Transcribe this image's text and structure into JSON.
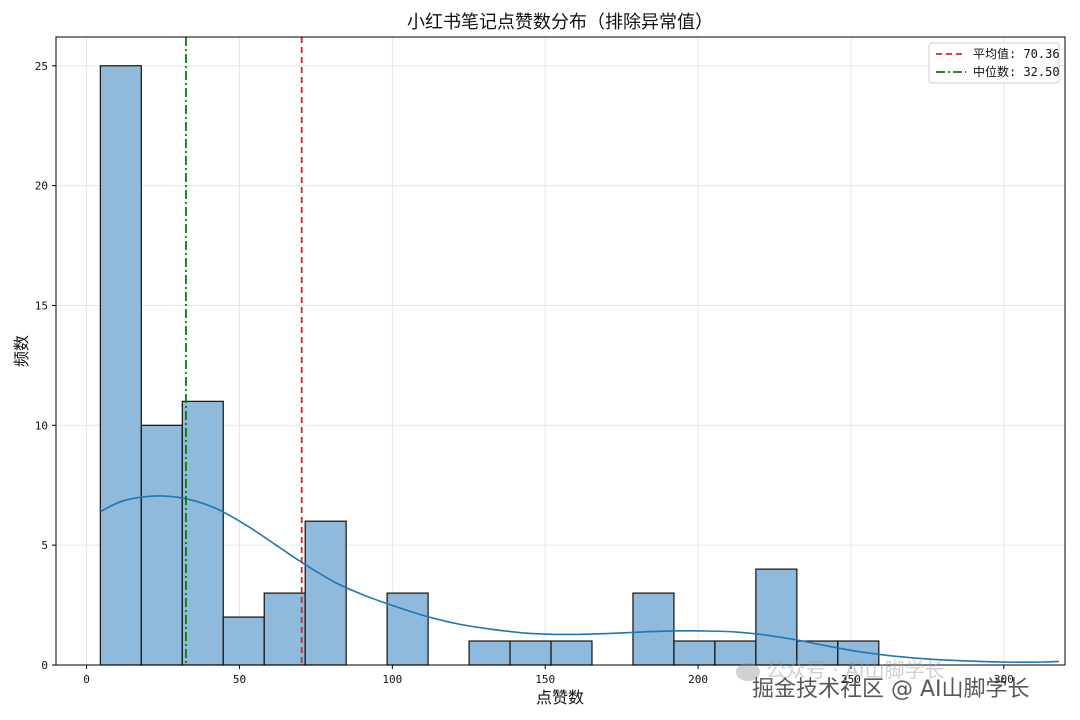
{
  "chart_data": {
    "type": "histogram",
    "title": "小红书笔记点赞数分布（排除异常值）",
    "xlabel": "点赞数",
    "ylabel": "频数",
    "xlim": [
      -10,
      320
    ],
    "ylim": [
      0,
      26.2
    ],
    "xticks": [
      0,
      50,
      100,
      150,
      200,
      250,
      300
    ],
    "yticks": [
      0,
      5,
      10,
      15,
      20,
      25
    ],
    "grid": true,
    "legend_position": "top-right",
    "bin_edges": [
      4.5,
      17.9,
      31.3,
      44.7,
      58.1,
      71.5,
      84.9,
      98.3,
      111.7,
      125.1,
      138.5,
      151.9,
      165.3,
      178.7,
      192.1,
      205.5,
      218.9,
      232.3,
      245.7,
      259.1,
      272.5,
      285.9,
      299.3,
      312.7,
      326.1
    ],
    "counts": [
      25,
      10,
      11,
      2,
      3,
      6,
      0,
      3,
      0,
      1,
      1,
      1,
      0,
      3,
      1,
      1,
      4,
      1,
      1,
      0,
      0,
      0,
      0,
      0
    ],
    "bar_color": "#8fbadb",
    "bar_edge_color": "#111111",
    "kde": {
      "color": "#1f77b4",
      "x": [
        4.5,
        12,
        22,
        32,
        42,
        52,
        62,
        72,
        82,
        92,
        102,
        112,
        122,
        132,
        142,
        152,
        162,
        172,
        182,
        192,
        202,
        212,
        222,
        232,
        242,
        252,
        262,
        272,
        282,
        292,
        302,
        312,
        318
      ],
      "y": [
        6.4,
        6.85,
        7.05,
        6.95,
        6.55,
        5.85,
        5.0,
        4.15,
        3.4,
        2.85,
        2.4,
        2.0,
        1.7,
        1.5,
        1.35,
        1.28,
        1.28,
        1.32,
        1.38,
        1.42,
        1.42,
        1.38,
        1.25,
        1.05,
        0.8,
        0.57,
        0.4,
        0.28,
        0.2,
        0.15,
        0.12,
        0.12,
        0.15
      ]
    },
    "reference_lines": [
      {
        "label": "平均值: 70.36",
        "value": 70.36,
        "color": "#d62728",
        "style": "dashed"
      },
      {
        "label": "中位数: 32.50",
        "value": 32.5,
        "color": "#008000",
        "style": "dashdot"
      }
    ]
  },
  "watermark": {
    "line1": "公众号 · AI山脚学长",
    "line2": "掘金技术社区 @ AI山脚学长"
  }
}
